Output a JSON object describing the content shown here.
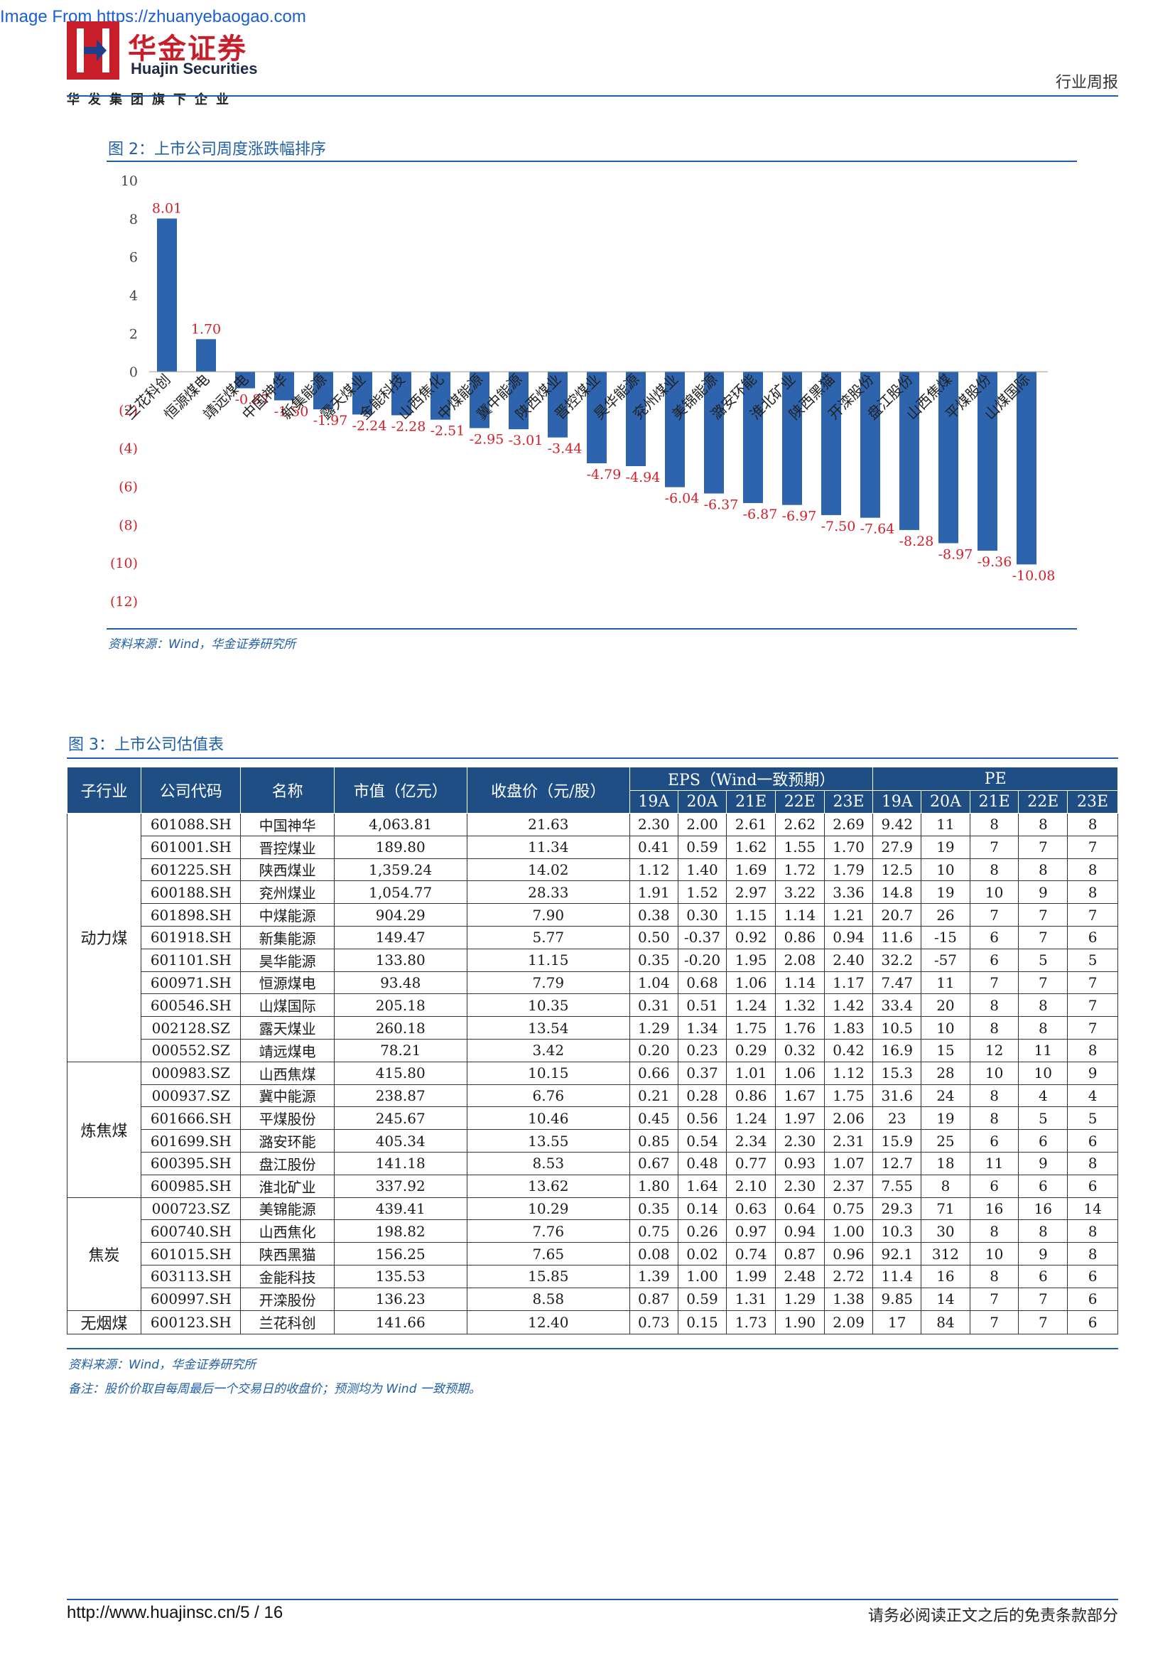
{
  "watermark": "Image From https://zhuanyebaogao.com",
  "header": {
    "logo_cn": "华金证券",
    "logo_en": "Huajin Securities",
    "logo_sub": "华发集团旗下企业",
    "report_type": "行业周报"
  },
  "figure2": {
    "title": "图 2：上市公司周度涨跌幅排序",
    "source": "资料来源：Wind，华金证券研究所"
  },
  "chart_data": {
    "type": "bar",
    "title": "",
    "xlabel": "",
    "ylabel": "",
    "ylim": [
      -12,
      10
    ],
    "yticks": [
      "10",
      "8",
      "6",
      "4",
      "2",
      "0",
      "(2)",
      "(4)",
      "(6)",
      "(8)",
      "(10)",
      "(12)"
    ],
    "grid": false,
    "legend": "none",
    "bar_color": "#2e63ad",
    "label_color": "#d0202a",
    "categories": [
      "兰花科创",
      "恒源煤电",
      "靖远煤电",
      "中国神华",
      "新集能源",
      "露天煤业",
      "金能科技",
      "山西焦化",
      "中煤能源",
      "冀中能源",
      "陕西煤业",
      "晋控煤业",
      "昊华能源",
      "兖州煤业",
      "美锦能源",
      "潞安环能",
      "淮北矿业",
      "陕西黑猫",
      "开滦股份",
      "盘江股份",
      "山西焦煤",
      "平煤股份",
      "山煤国际"
    ],
    "values": [
      8.01,
      1.7,
      -0.87,
      -1.5,
      -1.97,
      -2.24,
      -2.28,
      -2.51,
      -2.95,
      -3.01,
      -3.44,
      -4.79,
      -4.94,
      -6.04,
      -6.37,
      -6.87,
      -6.97,
      -7.5,
      -7.64,
      -8.28,
      -8.97,
      -9.36,
      -10.08
    ],
    "value_labels": [
      "8.01",
      "1.70",
      "-0.87",
      "-1.50",
      "-1.97",
      "-2.24",
      "-2.28",
      "-2.51",
      "-2.95",
      "-3.01",
      "-3.44",
      "-4.79",
      "-4.94",
      "-6.04",
      "-6.37",
      "-6.87",
      "-6.97",
      "-7.50",
      "-7.64",
      "-8.28",
      "-8.97",
      "-9.36",
      "-10.08"
    ]
  },
  "figure3": {
    "title": "图 3：上市公司估值表",
    "source": "资料来源：Wind，华金证券研究所",
    "note": "备注：股价价取自每周最后一个交易日的收盘价；预测均为 Wind 一致预期。"
  },
  "table": {
    "headers": {
      "industry": "子行业",
      "code": "公司代码",
      "name": "名称",
      "mktcap": "市值（亿元）",
      "price": "收盘价（元/股）",
      "eps": "EPS（Wind一致预期）",
      "pe": "PE",
      "years": [
        "19A",
        "20A",
        "21E",
        "22E",
        "23E"
      ]
    },
    "groups": [
      {
        "name": "动力煤",
        "rows": [
          [
            "601088.SH",
            "中国神华",
            "4,063.81",
            "21.63",
            "2.30",
            "2.00",
            "2.61",
            "2.62",
            "2.69",
            "9.42",
            "11",
            "8",
            "8",
            "8"
          ],
          [
            "601001.SH",
            "晋控煤业",
            "189.80",
            "11.34",
            "0.41",
            "0.59",
            "1.62",
            "1.55",
            "1.70",
            "27.9",
            "19",
            "7",
            "7",
            "7"
          ],
          [
            "601225.SH",
            "陕西煤业",
            "1,359.24",
            "14.02",
            "1.12",
            "1.40",
            "1.69",
            "1.72",
            "1.79",
            "12.5",
            "10",
            "8",
            "8",
            "8"
          ],
          [
            "600188.SH",
            "兖州煤业",
            "1,054.77",
            "28.33",
            "1.91",
            "1.52",
            "2.97",
            "3.22",
            "3.36",
            "14.8",
            "19",
            "10",
            "9",
            "8"
          ],
          [
            "601898.SH",
            "中煤能源",
            "904.29",
            "7.90",
            "0.38",
            "0.30",
            "1.15",
            "1.14",
            "1.21",
            "20.7",
            "26",
            "7",
            "7",
            "7"
          ],
          [
            "601918.SH",
            "新集能源",
            "149.47",
            "5.77",
            "0.50",
            "-0.37",
            "0.92",
            "0.86",
            "0.94",
            "11.6",
            "-15",
            "6",
            "7",
            "6"
          ],
          [
            "601101.SH",
            "昊华能源",
            "133.80",
            "11.15",
            "0.35",
            "-0.20",
            "1.95",
            "2.08",
            "2.40",
            "32.2",
            "-57",
            "6",
            "5",
            "5"
          ],
          [
            "600971.SH",
            "恒源煤电",
            "93.48",
            "7.79",
            "1.04",
            "0.68",
            "1.06",
            "1.14",
            "1.17",
            "7.47",
            "11",
            "7",
            "7",
            "7"
          ],
          [
            "600546.SH",
            "山煤国际",
            "205.18",
            "10.35",
            "0.31",
            "0.51",
            "1.24",
            "1.32",
            "1.42",
            "33.4",
            "20",
            "8",
            "8",
            "7"
          ],
          [
            "002128.SZ",
            "露天煤业",
            "260.18",
            "13.54",
            "1.29",
            "1.34",
            "1.75",
            "1.76",
            "1.83",
            "10.5",
            "10",
            "8",
            "8",
            "7"
          ],
          [
            "000552.SZ",
            "靖远煤电",
            "78.21",
            "3.42",
            "0.20",
            "0.23",
            "0.29",
            "0.32",
            "0.42",
            "16.9",
            "15",
            "12",
            "11",
            "8"
          ]
        ]
      },
      {
        "name": "炼焦煤",
        "rows": [
          [
            "000983.SZ",
            "山西焦煤",
            "415.80",
            "10.15",
            "0.66",
            "0.37",
            "1.01",
            "1.06",
            "1.12",
            "15.3",
            "28",
            "10",
            "10",
            "9"
          ],
          [
            "000937.SZ",
            "冀中能源",
            "238.87",
            "6.76",
            "0.21",
            "0.28",
            "0.86",
            "1.67",
            "1.75",
            "31.6",
            "24",
            "8",
            "4",
            "4"
          ],
          [
            "601666.SH",
            "平煤股份",
            "245.67",
            "10.46",
            "0.45",
            "0.56",
            "1.24",
            "1.97",
            "2.06",
            "23",
            "19",
            "8",
            "5",
            "5"
          ],
          [
            "601699.SH",
            "潞安环能",
            "405.34",
            "13.55",
            "0.85",
            "0.54",
            "2.34",
            "2.30",
            "2.31",
            "15.9",
            "25",
            "6",
            "6",
            "6"
          ],
          [
            "600395.SH",
            "盘江股份",
            "141.18",
            "8.53",
            "0.67",
            "0.48",
            "0.77",
            "0.93",
            "1.07",
            "12.7",
            "18",
            "11",
            "9",
            "8"
          ],
          [
            "600985.SH",
            "淮北矿业",
            "337.92",
            "13.62",
            "1.80",
            "1.64",
            "2.10",
            "2.30",
            "2.37",
            "7.55",
            "8",
            "6",
            "6",
            "6"
          ]
        ]
      },
      {
        "name": "焦炭",
        "rows": [
          [
            "000723.SZ",
            "美锦能源",
            "439.41",
            "10.29",
            "0.35",
            "0.14",
            "0.63",
            "0.64",
            "0.75",
            "29.3",
            "71",
            "16",
            "16",
            "14"
          ],
          [
            "600740.SH",
            "山西焦化",
            "198.82",
            "7.76",
            "0.75",
            "0.26",
            "0.97",
            "0.94",
            "1.00",
            "10.3",
            "30",
            "8",
            "8",
            "8"
          ],
          [
            "601015.SH",
            "陕西黑猫",
            "156.25",
            "7.65",
            "0.08",
            "0.02",
            "0.74",
            "0.87",
            "0.96",
            "92.1",
            "312",
            "10",
            "9",
            "8"
          ],
          [
            "603113.SH",
            "金能科技",
            "135.53",
            "15.85",
            "1.39",
            "1.00",
            "1.99",
            "2.48",
            "2.72",
            "11.4",
            "16",
            "8",
            "6",
            "6"
          ],
          [
            "600997.SH",
            "开滦股份",
            "136.23",
            "8.58",
            "0.87",
            "0.59",
            "1.31",
            "1.29",
            "1.38",
            "9.85",
            "14",
            "7",
            "7",
            "6"
          ]
        ]
      },
      {
        "name": "无烟煤",
        "rows": [
          [
            "600123.SH",
            "兰花科创",
            "141.66",
            "12.40",
            "0.73",
            "0.15",
            "1.73",
            "1.90",
            "2.09",
            "17",
            "84",
            "7",
            "7",
            "6"
          ]
        ]
      }
    ]
  },
  "footer": {
    "url": "http://www.huajinsc.cn/5 / 16",
    "disclaimer": "请务必阅读正文之后的免责条款部分"
  }
}
